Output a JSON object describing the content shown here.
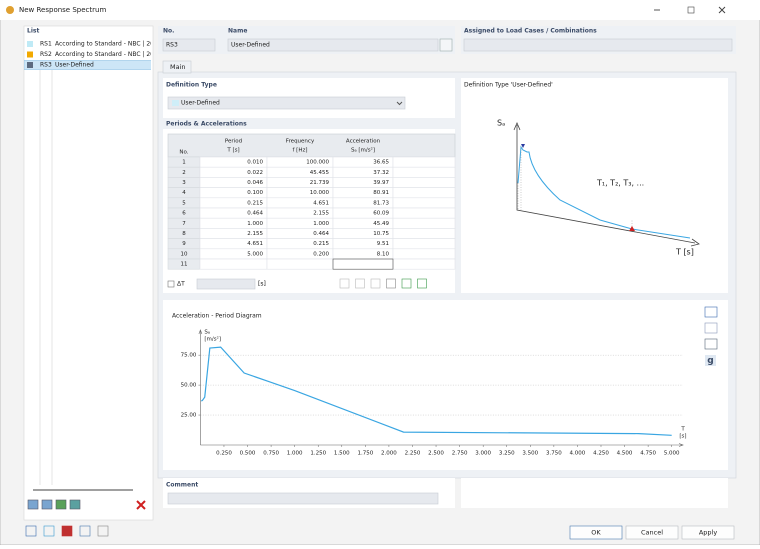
{
  "window": {
    "title": "New Response Spectrum"
  },
  "list": {
    "header": "List",
    "items": [
      {
        "id": "RS1",
        "label": "According to Standard - NBC | 20",
        "color": "#bfeaf6"
      },
      {
        "id": "RS2",
        "label": "According to Standard - NBC | 20",
        "color": "#f2a900"
      },
      {
        "id": "RS3",
        "label": "User-Defined",
        "color": "#5d6b80"
      }
    ]
  },
  "fields": {
    "no_label": "No.",
    "no_value": "RS3",
    "name_label": "Name",
    "name_value": "User-Defined",
    "assigned_label": "Assigned to Load Cases / Combinations"
  },
  "tab": "Main",
  "definition": {
    "header": "Definition Type",
    "value": "User-Defined"
  },
  "table": {
    "header": "Periods & Accelerations",
    "columns": [
      [
        "No."
      ],
      [
        "Period",
        "T [s]"
      ],
      [
        "Frequency",
        "f [Hz]"
      ],
      [
        "Acceleration",
        "Sₐ [m/s²]"
      ]
    ],
    "rows": [
      [
        "1",
        "0.010",
        "100.000",
        "36.65"
      ],
      [
        "2",
        "0.022",
        "45.455",
        "37.32"
      ],
      [
        "3",
        "0.046",
        "21.739",
        "39.97"
      ],
      [
        "4",
        "0.100",
        "10.000",
        "80.91"
      ],
      [
        "5",
        "0.215",
        "4.651",
        "81.73"
      ],
      [
        "6",
        "0.464",
        "2.155",
        "60.09"
      ],
      [
        "7",
        "1.000",
        "1.000",
        "45.49"
      ],
      [
        "8",
        "2.155",
        "0.464",
        "10.75"
      ],
      [
        "9",
        "4.651",
        "0.215",
        "9.51"
      ],
      [
        "10",
        "5.000",
        "0.200",
        "8.10"
      ],
      [
        "11"
      ]
    ]
  },
  "delta": {
    "label": "ΔT",
    "unit": "[s]"
  },
  "preview": {
    "title": "Definition Type 'User-Defined'",
    "y_label": "Sₐ",
    "x_label": "T [s]",
    "note": "T₁, T₂, T₃, ..."
  },
  "chart_data": {
    "type": "line",
    "title": "Acceleration - Period Diagram",
    "x_label": "T",
    "x_unit": "[s]",
    "y_label": "Sₐ",
    "y_unit": "[m/s²]",
    "x": [
      0.01,
      0.022,
      0.046,
      0.1,
      0.215,
      0.464,
      1.0,
      2.155,
      4.651,
      5.0
    ],
    "values": [
      36.65,
      37.32,
      39.97,
      80.91,
      81.73,
      60.09,
      45.49,
      10.75,
      9.51,
      8.1
    ],
    "color": "#3aa6e2",
    "xlim": [
      0,
      5.12
    ],
    "ylim": [
      0,
      96
    ],
    "xticks": [
      {
        "value": 0.25,
        "label": "0.250"
      },
      {
        "value": 0.5,
        "label": "0.500"
      },
      {
        "value": 0.75,
        "label": "0.750"
      },
      {
        "value": 1,
        "label": "1.000"
      },
      {
        "value": 1.25,
        "label": "1.250"
      },
      {
        "value": 1.5,
        "label": "1.500"
      },
      {
        "value": 1.75,
        "label": "1.750"
      },
      {
        "value": 2,
        "label": "2.000"
      },
      {
        "value": 2.25,
        "label": "2.250"
      },
      {
        "value": 2.5,
        "label": "2.500"
      },
      {
        "value": 2.75,
        "label": "2.750"
      },
      {
        "value": 3,
        "label": "3.000"
      },
      {
        "value": 3.25,
        "label": "3.250"
      },
      {
        "value": 3.5,
        "label": "3.500"
      },
      {
        "value": 3.75,
        "label": "3.750"
      },
      {
        "value": 4,
        "label": "4.000"
      },
      {
        "value": 4.25,
        "label": "4.250"
      },
      {
        "value": 4.5,
        "label": "4.500"
      },
      {
        "value": 4.75,
        "label": "4.750"
      },
      {
        "value": 5,
        "label": "5.000"
      }
    ],
    "yticks": [
      {
        "value": 25,
        "label": "25.00"
      },
      {
        "value": 50,
        "label": "50.00"
      },
      {
        "value": 75,
        "label": "75.00"
      }
    ],
    "grid": true
  },
  "toolbar_g": "g",
  "comment": {
    "label": "Comment"
  },
  "buttons": [
    "OK",
    "Cancel",
    "Apply"
  ]
}
